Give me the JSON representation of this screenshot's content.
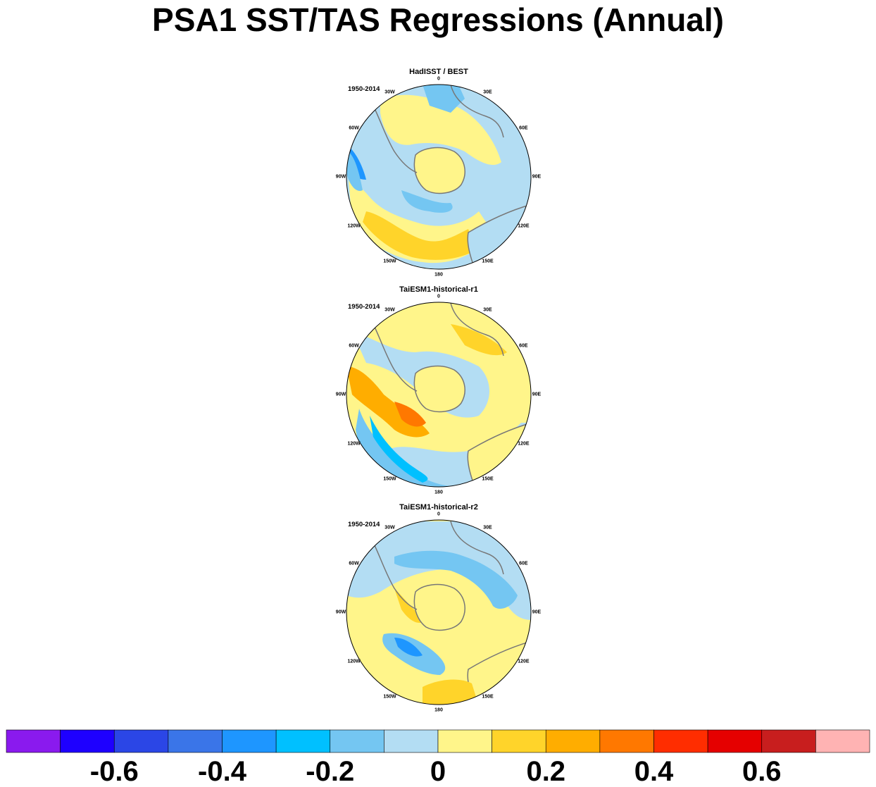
{
  "title": "PSA1 SST/TAS Regressions (Annual)",
  "panels": [
    {
      "title": "HadISST / BEST",
      "period": "1950-2014"
    },
    {
      "title": "TaiESM1-historical-r1",
      "period": "1950-2014"
    },
    {
      "title": "TaiESM1-historical-r2",
      "period": "1950-2014"
    }
  ],
  "longitude_labels": [
    "0",
    "30E",
    "60E",
    "90E",
    "120E",
    "150E",
    "180",
    "150W",
    "120W",
    "90W",
    "60W",
    "30W"
  ],
  "map_projection": "south-polar stereographic",
  "colorbar": {
    "colors": [
      "#8a1aee",
      "#1e00ff",
      "#2b46e6",
      "#3a75e8",
      "#1e96ff",
      "#00c0ff",
      "#74c6f2",
      "#b3ddf3",
      "#fff58a",
      "#ffd42a",
      "#ffad00",
      "#ff7800",
      "#ff2d00",
      "#e50000",
      "#c81e1e",
      "#ffb3b3"
    ],
    "labels": [
      "-0.6",
      "-0.4",
      "-0.2",
      "0",
      "0.2",
      "0.4",
      "0.6"
    ]
  },
  "colors": {
    "land_outline": "#777777",
    "map_border": "#000000"
  }
}
